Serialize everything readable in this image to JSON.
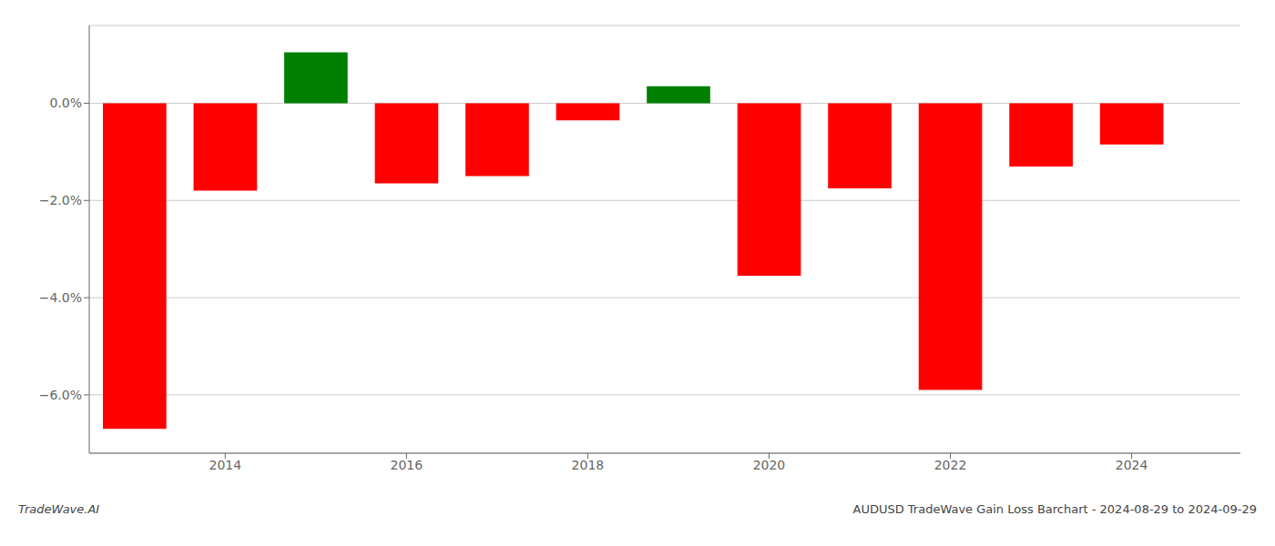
{
  "chart_data": {
    "type": "bar",
    "x": [
      2013,
      2014,
      2015,
      2016,
      2017,
      2018,
      2019,
      2020,
      2021,
      2022,
      2023,
      2024
    ],
    "values": [
      -6.7,
      -1.8,
      1.05,
      -1.65,
      -1.5,
      -0.35,
      0.35,
      -3.55,
      -1.75,
      -5.9,
      -1.3,
      -0.85
    ],
    "colors": [
      "#FF0000",
      "#FF0000",
      "#008000",
      "#FF0000",
      "#FF0000",
      "#FF0000",
      "#008000",
      "#FF0000",
      "#FF0000",
      "#FF0000",
      "#FF0000",
      "#FF0000"
    ],
    "xlim": [
      2012.5,
      2025.2
    ],
    "xticks": [
      2014,
      2016,
      2018,
      2020,
      2022,
      2024
    ],
    "ylim": [
      -7.2,
      1.6
    ],
    "yticks": [
      {
        "value": 0.0,
        "label": "0.0%"
      },
      {
        "value": -2.0,
        "label": "−2.0%"
      },
      {
        "value": -4.0,
        "label": "−4.0%"
      },
      {
        "value": -6.0,
        "label": "−6.0%"
      }
    ],
    "grid": true,
    "annotations": [
      "TradeWave.AI",
      "AUDUSD TradeWave Gain Loss Barchart - 2024-08-29 to 2024-09-29"
    ]
  }
}
